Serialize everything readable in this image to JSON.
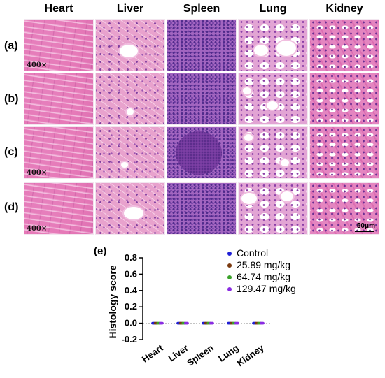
{
  "columns": [
    "Heart",
    "Liver",
    "Spleen",
    "Lung",
    "Kidney"
  ],
  "rows": [
    "(a)",
    "(b)",
    "(c)",
    "(d)"
  ],
  "magnification": "400×",
  "scale_bar": "50μm",
  "colors": {
    "control": "#1f1fd6",
    "dose1": "#7b3a10",
    "dose2": "#3aa22a",
    "dose3": "#8a2be2",
    "axis": "#000000",
    "zero_line": "#bbbbbb"
  },
  "chart_data": {
    "type": "scatter",
    "panel_label": "(e)",
    "title": "",
    "xlabel": "",
    "ylabel": "Histology score",
    "categories": [
      "Heart",
      "Liver",
      "Spleen",
      "Lung",
      "Kidney"
    ],
    "ylim": [
      -0.2,
      0.8
    ],
    "yticks": [
      "0.8",
      "0.6",
      "0.4",
      "0.2",
      "0.0",
      "-0.2"
    ],
    "legend_position": "top-right",
    "series": [
      {
        "name": "Control",
        "values": [
          0,
          0,
          0,
          0,
          0
        ]
      },
      {
        "name": "25.89 mg/kg",
        "values": [
          0,
          0,
          0,
          0,
          0
        ]
      },
      {
        "name": "64.74 mg/kg",
        "values": [
          0,
          0,
          0,
          0,
          0
        ]
      },
      {
        "name": "129.47 mg/kg",
        "values": [
          0,
          0,
          0,
          0,
          0
        ]
      }
    ]
  }
}
